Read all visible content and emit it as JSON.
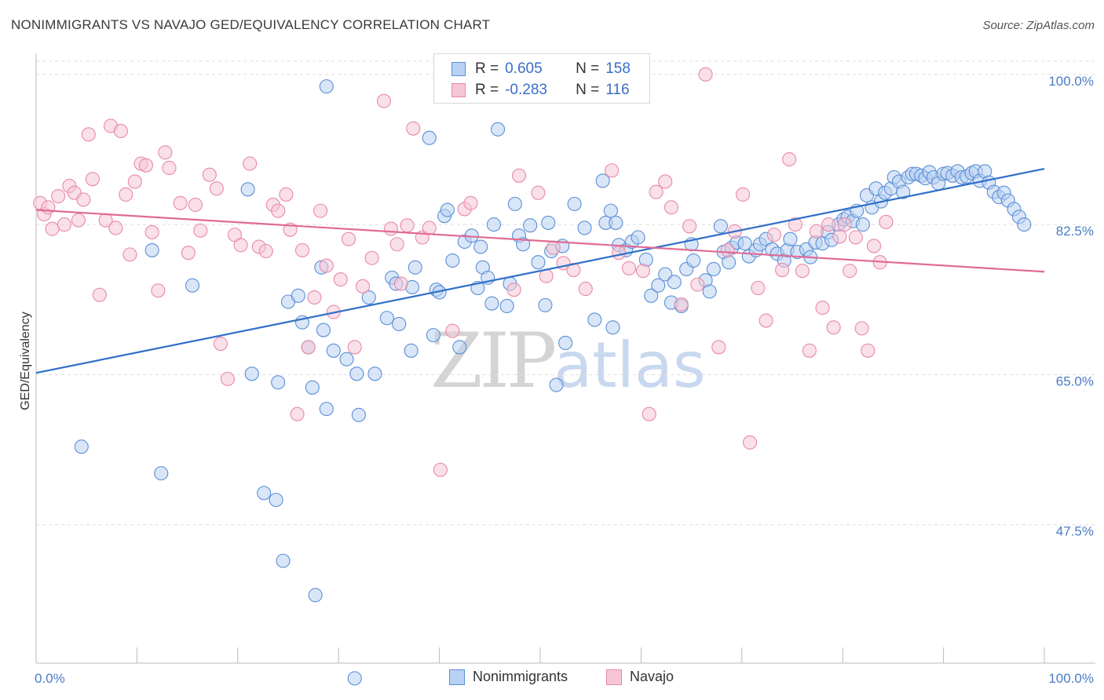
{
  "title": "NONIMMIGRANTS VS NAVAJO GED/EQUIVALENCY CORRELATION CHART",
  "source": "Source: ZipAtlas.com",
  "watermark": {
    "zip": "ZIP",
    "atlas": "atlas"
  },
  "legend": {
    "rows": [
      {
        "r_label": "R =",
        "r_value": "0.605",
        "n_label": "N =",
        "n_value": "158"
      },
      {
        "r_label": "R =",
        "r_value": "-0.283",
        "n_label": "N =",
        "n_value": "116"
      }
    ]
  },
  "bottom_legend": [
    "Nonimmigrants",
    "Navajo"
  ],
  "colors": {
    "blue": "#5b8fd6",
    "blue_fill": "#b9d1f2",
    "blue_line": "#2f6fc8",
    "pink": "#e88aa8",
    "pink_fill": "#f6c6d6",
    "pink_line": "#e06b94"
  },
  "chart_data": {
    "type": "scatter",
    "title": "NONIMMIGRANTS VS NAVAJO GED/EQUIVALENCY CORRELATION CHART",
    "ylabel": "GED/Equivalency",
    "xlabel": "",
    "xlim": [
      0,
      100
    ],
    "ylim": [
      30,
      102
    ],
    "y_ticks": [
      "100.0%",
      "82.5%",
      "65.0%",
      "47.5%"
    ],
    "y_tick_values": [
      100,
      82.5,
      65,
      47.5
    ],
    "x_tick_labels": [
      "0.0%",
      "100.0%"
    ],
    "grid": "horizontal dashed",
    "legend_position": "top-center",
    "series": [
      {
        "name": "Nonimmigrants",
        "r": 0.605,
        "n": 158,
        "trend": [
          [
            0,
            65.2
          ],
          [
            100,
            89.0
          ]
        ],
        "points": [
          [
            4.5,
            56.6
          ],
          [
            12.4,
            53.5
          ],
          [
            11.5,
            79.5
          ],
          [
            15.5,
            75.4
          ],
          [
            21,
            86.6
          ],
          [
            21.4,
            65.1
          ],
          [
            22.6,
            51.2
          ],
          [
            23.8,
            50.4
          ],
          [
            24.5,
            43.3
          ],
          [
            24,
            64.1
          ],
          [
            25,
            73.5
          ],
          [
            26.4,
            71.1
          ],
          [
            26,
            74.2
          ],
          [
            27,
            68.2
          ],
          [
            27.4,
            63.5
          ],
          [
            28.8,
            61.0
          ],
          [
            28.3,
            77.5
          ],
          [
            28.5,
            70.2
          ],
          [
            29.5,
            67.8
          ],
          [
            30.8,
            66.8
          ],
          [
            31.8,
            65.1
          ],
          [
            32,
            60.3
          ],
          [
            33.6,
            65.1
          ],
          [
            34.8,
            71.6
          ],
          [
            35.3,
            76.3
          ],
          [
            35.7,
            75.6
          ],
          [
            36,
            70.9
          ],
          [
            27.7,
            39.3
          ],
          [
            31.6,
            29.6
          ],
          [
            28.8,
            98.6
          ],
          [
            37.2,
            67.8
          ],
          [
            37.3,
            75.2
          ],
          [
            37.6,
            77.5
          ],
          [
            39.0,
            92.6
          ],
          [
            39.4,
            69.6
          ],
          [
            39.7,
            74.9
          ],
          [
            40.5,
            83.5
          ],
          [
            40.8,
            84.2
          ],
          [
            41.3,
            78.3
          ],
          [
            42,
            68.2
          ],
          [
            42.5,
            80.5
          ],
          [
            43.2,
            81.2
          ],
          [
            43.8,
            75.1
          ],
          [
            44.1,
            79.9
          ],
          [
            44.3,
            77.5
          ],
          [
            45.2,
            73.3
          ],
          [
            45.4,
            82.5
          ],
          [
            45.8,
            93.6
          ],
          [
            46.7,
            73.0
          ],
          [
            47.0,
            75.6
          ],
          [
            47.5,
            84.9
          ],
          [
            47.9,
            81.2
          ],
          [
            48.3,
            80.2
          ],
          [
            49.0,
            82.4
          ],
          [
            49.8,
            78.1
          ],
          [
            50.5,
            73.1
          ],
          [
            50.8,
            82.7
          ],
          [
            51.1,
            79.4
          ],
          [
            51.6,
            63.8
          ],
          [
            52.2,
            80.0
          ],
          [
            52.5,
            68.7
          ],
          [
            53.4,
            84.9
          ],
          [
            54.4,
            82.1
          ],
          [
            55.4,
            71.4
          ],
          [
            56.2,
            87.6
          ],
          [
            56.5,
            82.7
          ],
          [
            57.0,
            84.1
          ],
          [
            57.5,
            82.7
          ],
          [
            57.8,
            80.1
          ],
          [
            58.5,
            79.5
          ],
          [
            59.1,
            80.5
          ],
          [
            60.5,
            78.4
          ],
          [
            61.0,
            74.2
          ],
          [
            61.7,
            75.4
          ],
          [
            62.4,
            76.7
          ],
          [
            63.0,
            73.4
          ],
          [
            63.3,
            75.8
          ],
          [
            64.0,
            73.0
          ],
          [
            64.5,
            77.3
          ],
          [
            65.0,
            80.2
          ],
          [
            65.2,
            78.3
          ],
          [
            66.4,
            76.0
          ],
          [
            66.8,
            74.7
          ],
          [
            67.2,
            77.3
          ],
          [
            67.9,
            82.3
          ],
          [
            68.2,
            79.3
          ],
          [
            68.7,
            78.1
          ],
          [
            69.0,
            79.8
          ],
          [
            69.5,
            80.4
          ],
          [
            70.3,
            80.3
          ],
          [
            70.7,
            78.8
          ],
          [
            71.4,
            79.5
          ],
          [
            71.8,
            80.2
          ],
          [
            72.4,
            80.8
          ],
          [
            73.0,
            79.6
          ],
          [
            73.5,
            79.1
          ],
          [
            74.2,
            78.3
          ],
          [
            74.5,
            79.5
          ],
          [
            74.8,
            80.8
          ],
          [
            75.5,
            79.3
          ],
          [
            76.4,
            79.6
          ],
          [
            76.8,
            78.7
          ],
          [
            77.3,
            80.4
          ],
          [
            78.0,
            80.3
          ],
          [
            78.5,
            81.6
          ],
          [
            78.9,
            80.7
          ],
          [
            79.6,
            82.5
          ],
          [
            80.1,
            83.1
          ],
          [
            80.5,
            83.4
          ],
          [
            81.0,
            82.9
          ],
          [
            81.4,
            84.1
          ],
          [
            82.0,
            82.5
          ],
          [
            82.4,
            85.9
          ],
          [
            82.9,
            84.5
          ],
          [
            83.3,
            86.7
          ],
          [
            83.8,
            85.2
          ],
          [
            84.2,
            86.2
          ],
          [
            84.8,
            86.7
          ],
          [
            85.1,
            88.0
          ],
          [
            85.6,
            87.5
          ],
          [
            86.0,
            86.3
          ],
          [
            86.5,
            88.0
          ],
          [
            86.9,
            88.4
          ],
          [
            87.3,
            88.4
          ],
          [
            87.8,
            88.2
          ],
          [
            88.2,
            87.9
          ],
          [
            88.6,
            88.6
          ],
          [
            89.0,
            88.0
          ],
          [
            89.5,
            87.3
          ],
          [
            90.0,
            88.4
          ],
          [
            90.4,
            88.5
          ],
          [
            90.9,
            88.2
          ],
          [
            91.4,
            88.7
          ],
          [
            91.8,
            88.0
          ],
          [
            92.3,
            88.1
          ],
          [
            92.8,
            88.5
          ],
          [
            93.2,
            88.7
          ],
          [
            93.6,
            87.6
          ],
          [
            94.1,
            88.7
          ],
          [
            94.5,
            87.4
          ],
          [
            95.0,
            86.3
          ],
          [
            95.5,
            85.7
          ],
          [
            96.0,
            86.2
          ],
          [
            96.4,
            85.3
          ],
          [
            97.0,
            84.3
          ],
          [
            97.5,
            83.4
          ],
          [
            98.0,
            82.5
          ],
          [
            40.0,
            74.6
          ],
          [
            33.0,
            74.0
          ],
          [
            44.8,
            76.3
          ],
          [
            57.2,
            70.5
          ],
          [
            59.7,
            81.0
          ]
        ]
      },
      {
        "name": "Navajo",
        "r": -0.283,
        "n": 116,
        "trend": [
          [
            0,
            84.2
          ],
          [
            100,
            77.0
          ]
        ],
        "points": [
          [
            0.4,
            85.0
          ],
          [
            0.8,
            83.7
          ],
          [
            1.2,
            84.5
          ],
          [
            1.6,
            82.0
          ],
          [
            2.2,
            85.8
          ],
          [
            2.8,
            82.5
          ],
          [
            3.3,
            87.0
          ],
          [
            3.8,
            86.2
          ],
          [
            4.2,
            83.0
          ],
          [
            4.7,
            85.4
          ],
          [
            5.2,
            93.0
          ],
          [
            5.6,
            87.8
          ],
          [
            6.3,
            74.3
          ],
          [
            6.9,
            83.0
          ],
          [
            7.4,
            94.0
          ],
          [
            7.9,
            82.1
          ],
          [
            8.4,
            93.4
          ],
          [
            8.9,
            86.0
          ],
          [
            9.3,
            79.0
          ],
          [
            9.8,
            87.5
          ],
          [
            10.4,
            89.6
          ],
          [
            10.9,
            89.4
          ],
          [
            11.5,
            81.6
          ],
          [
            12.1,
            74.8
          ],
          [
            12.8,
            90.9
          ],
          [
            13.2,
            89.1
          ],
          [
            14.3,
            85.0
          ],
          [
            15.1,
            79.2
          ],
          [
            15.8,
            84.8
          ],
          [
            16.3,
            81.8
          ],
          [
            17.2,
            88.3
          ],
          [
            17.9,
            86.7
          ],
          [
            18.3,
            68.6
          ],
          [
            19.0,
            64.5
          ],
          [
            19.7,
            81.3
          ],
          [
            20.3,
            80.1
          ],
          [
            21.2,
            89.6
          ],
          [
            22.1,
            79.9
          ],
          [
            22.8,
            79.4
          ],
          [
            23.5,
            84.8
          ],
          [
            24.0,
            84.1
          ],
          [
            24.8,
            86.0
          ],
          [
            25.2,
            81.9
          ],
          [
            25.9,
            60.4
          ],
          [
            26.4,
            79.5
          ],
          [
            27.0,
            68.2
          ],
          [
            27.6,
            74.0
          ],
          [
            28.2,
            84.1
          ],
          [
            28.8,
            77.7
          ],
          [
            29.5,
            72.3
          ],
          [
            30.2,
            76.1
          ],
          [
            31.0,
            80.8
          ],
          [
            31.6,
            68.2
          ],
          [
            32.4,
            75.3
          ],
          [
            33.3,
            78.6
          ],
          [
            34.5,
            96.9
          ],
          [
            35.2,
            82.0
          ],
          [
            35.8,
            80.2
          ],
          [
            36.2,
            75.6
          ],
          [
            36.8,
            82.4
          ],
          [
            37.4,
            93.7
          ],
          [
            38.3,
            81.0
          ],
          [
            39.0,
            82.1
          ],
          [
            40.1,
            53.9
          ],
          [
            41.3,
            70.1
          ],
          [
            42.5,
            84.3
          ],
          [
            43.1,
            85.0
          ],
          [
            46.2,
            100.4
          ],
          [
            47.4,
            74.9
          ],
          [
            47.9,
            88.2
          ],
          [
            49.8,
            86.2
          ],
          [
            50.6,
            76.5
          ],
          [
            51.3,
            79.8
          ],
          [
            52.3,
            78.0
          ],
          [
            53.3,
            77.2
          ],
          [
            54.5,
            75.0
          ],
          [
            55.6,
            99.6
          ],
          [
            56.2,
            100.1
          ],
          [
            57.1,
            88.8
          ],
          [
            57.8,
            79.2
          ],
          [
            58.8,
            77.4
          ],
          [
            60.2,
            77.1
          ],
          [
            60.8,
            60.4
          ],
          [
            61.5,
            86.3
          ],
          [
            62.4,
            87.5
          ],
          [
            63.0,
            84.5
          ],
          [
            64.0,
            73.2
          ],
          [
            64.8,
            82.3
          ],
          [
            65.6,
            75.5
          ],
          [
            66.4,
            100.0
          ],
          [
            67.7,
            68.2
          ],
          [
            68.6,
            79.5
          ],
          [
            69.3,
            81.7
          ],
          [
            70.1,
            86.0
          ],
          [
            70.8,
            57.1
          ],
          [
            71.6,
            75.1
          ],
          [
            72.4,
            71.3
          ],
          [
            73.2,
            81.3
          ],
          [
            74.0,
            77.2
          ],
          [
            74.7,
            90.1
          ],
          [
            75.3,
            82.5
          ],
          [
            76.0,
            77.1
          ],
          [
            76.7,
            67.8
          ],
          [
            77.4,
            81.7
          ],
          [
            78.0,
            72.8
          ],
          [
            78.6,
            82.5
          ],
          [
            79.1,
            70.5
          ],
          [
            79.7,
            81.1
          ],
          [
            80.2,
            82.5
          ],
          [
            80.7,
            77.1
          ],
          [
            81.3,
            81.0
          ],
          [
            81.9,
            70.4
          ],
          [
            82.5,
            67.8
          ],
          [
            83.1,
            80.0
          ],
          [
            83.7,
            78.1
          ],
          [
            84.3,
            82.8
          ]
        ]
      }
    ]
  }
}
